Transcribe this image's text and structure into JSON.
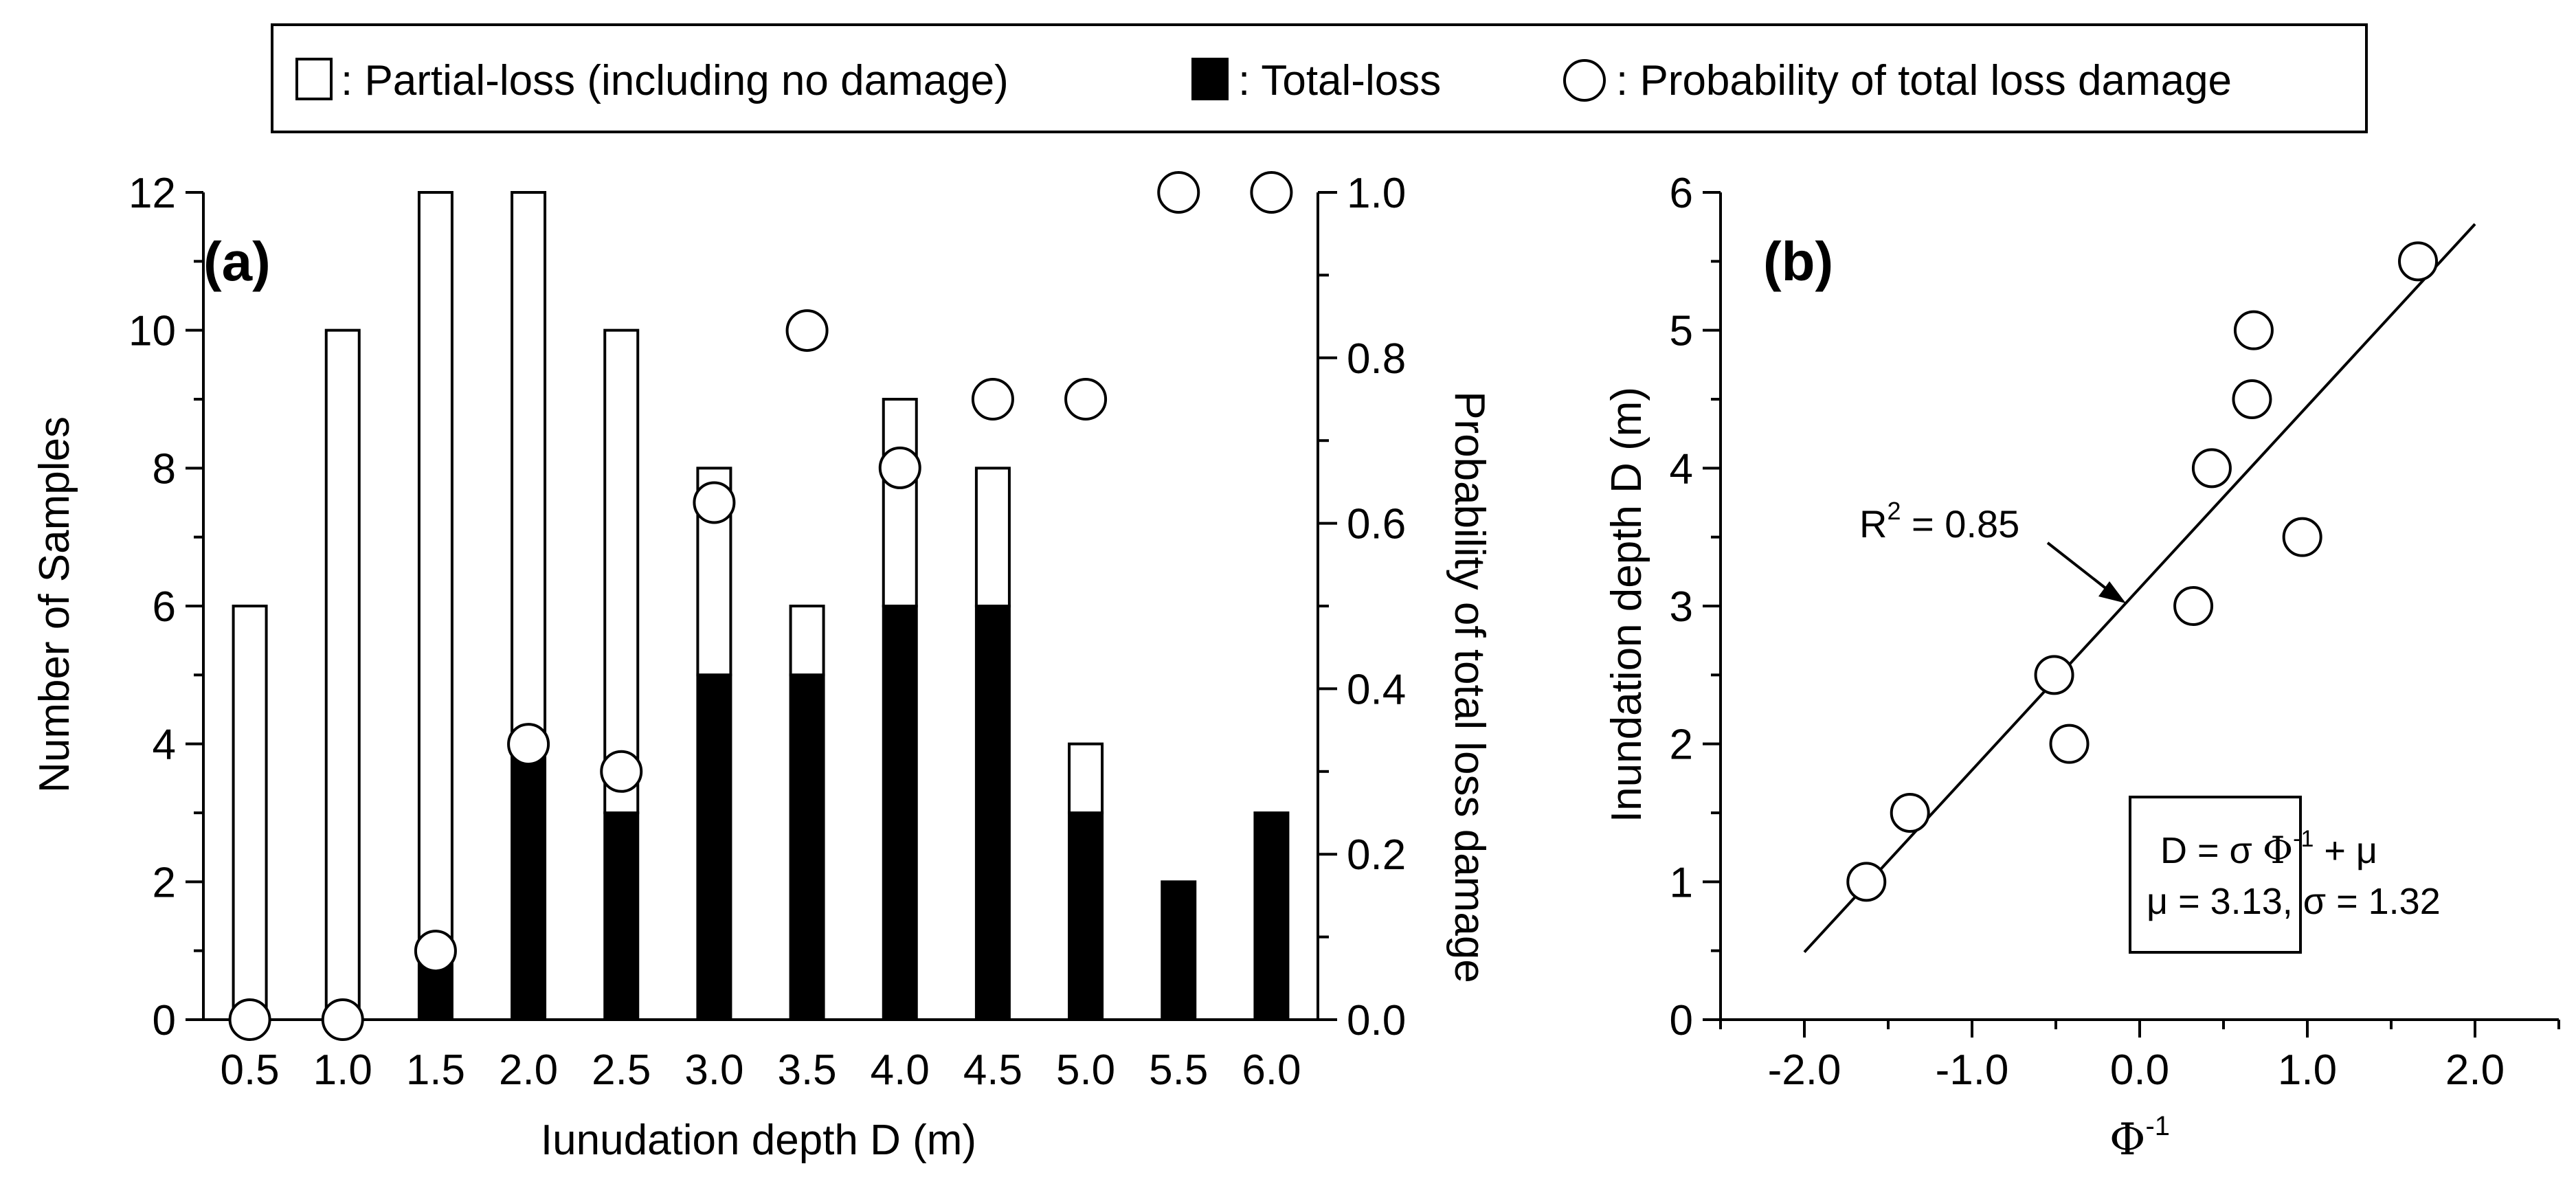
{
  "legend": {
    "partial_label": ": Partial-loss (including no damage)",
    "total_label": ": Total-loss",
    "prob_label": ": Probability of total loss damage"
  },
  "colors": {
    "partial": "#ffffff",
    "total": "#000000",
    "outline": "#000000"
  },
  "chart_data": [
    {
      "panel": "(a)",
      "type": "bar",
      "stacked": true,
      "categories": [
        "0.5",
        "1.0",
        "1.5",
        "2.0",
        "2.5",
        "3.0",
        "3.5",
        "4.0",
        "4.5",
        "5.0",
        "5.5",
        "6.0"
      ],
      "series": [
        {
          "name": "Total-loss",
          "values": [
            0,
            0,
            1,
            4,
            3,
            5,
            5,
            6,
            6,
            3,
            2,
            3
          ]
        },
        {
          "name": "Partial-loss (including no damage)",
          "values": [
            6,
            10,
            11,
            8,
            7,
            3,
            1,
            3,
            2,
            1,
            0,
            0
          ]
        }
      ],
      "totals": [
        6,
        10,
        12,
        12,
        10,
        8,
        6,
        9,
        8,
        4,
        2,
        3
      ],
      "secondary_series": {
        "name": "Probability of total loss damage",
        "type": "scatter",
        "values": [
          0,
          0,
          0.083,
          0.333,
          0.3,
          0.625,
          0.833,
          0.667,
          0.75,
          0.75,
          1.0,
          1.0
        ]
      },
      "xlabel": "Iunudation depth D (m)",
      "ylabel": "Number of Samples",
      "y2label": "Probability of total loss damage",
      "ylim": [
        0,
        12
      ],
      "yticks": [
        "0",
        "2",
        "4",
        "6",
        "8",
        "10",
        "12"
      ],
      "y2lim": [
        0,
        1.0
      ],
      "y2ticks": [
        "0.0",
        "0.2",
        "0.4",
        "0.6",
        "0.8",
        "1.0"
      ]
    },
    {
      "panel": "(b)",
      "type": "scatter",
      "points": [
        {
          "x": -1.63,
          "y": 1.0
        },
        {
          "x": -1.37,
          "y": 1.5
        },
        {
          "x": -0.51,
          "y": 2.5
        },
        {
          "x": -0.42,
          "y": 2.0
        },
        {
          "x": 0.32,
          "y": 3.0
        },
        {
          "x": 0.43,
          "y": 4.0
        },
        {
          "x": 0.67,
          "y": 4.5
        },
        {
          "x": 0.68,
          "y": 5.0
        },
        {
          "x": 0.97,
          "y": 3.5
        },
        {
          "x": 1.66,
          "y": 5.5
        }
      ],
      "fit_line": {
        "x": [
          -2.0,
          2.0
        ],
        "y": [
          0.49,
          5.77
        ]
      },
      "xlabel": "Φ",
      "xlabel_sup": "-1",
      "ylabel": "Inundation depth D (m)",
      "xlim": [
        -2.5,
        2.5
      ],
      "xticks": [
        "-2.0",
        "-1.0",
        "0.0",
        "1.0",
        "2.0"
      ],
      "ylim": [
        0,
        6
      ],
      "yticks": [
        "0",
        "1",
        "2",
        "3",
        "4",
        "5",
        "6"
      ],
      "annotation": {
        "r2_prefix": "R",
        "r2_sup": "2",
        "r2_value": " = 0.85"
      },
      "formula": {
        "line1_prefix": "D = σ ",
        "line1_phi": "Φ",
        "line1_sup": "-1",
        "line1_suffix": " + μ",
        "line2": "μ = 3.13, σ = 1.32"
      }
    }
  ]
}
